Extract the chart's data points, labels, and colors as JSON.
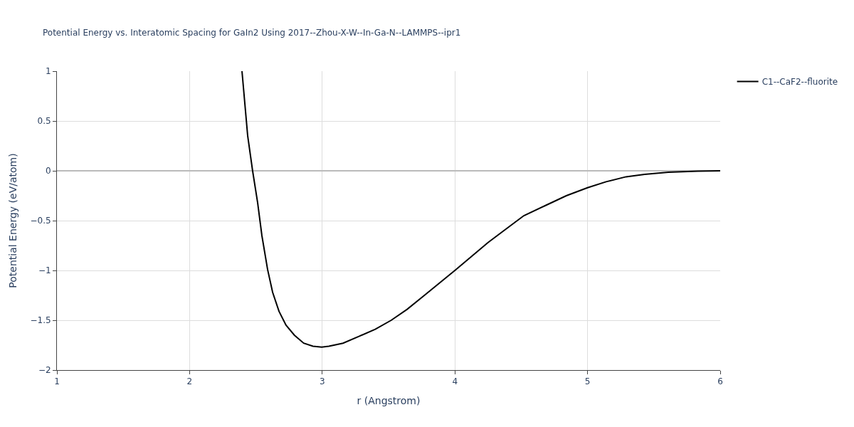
{
  "chart_data": {
    "type": "line",
    "title": "Potential Energy vs. Interatomic Spacing for GaIn2 Using 2017--Zhou-X-W--In-Ga-N--LAMMPS--ipr1",
    "xlabel": "r (Angstrom)",
    "ylabel": "Potential Energy (eV/atom)",
    "series": [
      {
        "name": "C1--CaF2--fluorite",
        "color": "#000000",
        "x": [
          2.395,
          2.438,
          2.475,
          2.513,
          2.545,
          2.588,
          2.626,
          2.674,
          2.727,
          2.79,
          2.86,
          2.93,
          2.996,
          3.05,
          3.157,
          3.28,
          3.4,
          3.52,
          3.64,
          3.77,
          4.0,
          4.25,
          4.4,
          4.52,
          4.68,
          4.84,
          5.0,
          5.14,
          5.29,
          5.43,
          5.61,
          5.83,
          6.0
        ],
        "values": [
          1,
          0.35,
          0,
          -0.32,
          -0.65,
          -0.99,
          -1.22,
          -1.41,
          -1.55,
          -1.65,
          -1.73,
          -1.76,
          -1.77,
          -1.76,
          -1.73,
          -1.66,
          -1.59,
          -1.5,
          -1.39,
          -1.25,
          -1.0,
          -0.72,
          -0.57,
          -0.45,
          -0.35,
          -0.25,
          -0.17,
          -0.11,
          -0.06,
          -0.035,
          -0.015,
          -0.003,
          0
        ]
      }
    ],
    "xlim": [
      1,
      6
    ],
    "xticks": [
      1,
      2,
      3,
      4,
      5,
      6
    ],
    "ylim": [
      -2,
      1
    ],
    "yticks": [
      1,
      0.5,
      0,
      {
        "value": -0.5,
        "label": "−0.5"
      },
      {
        "value": -1,
        "label": "−1"
      },
      {
        "value": -1.5,
        "label": "−1.5"
      },
      {
        "value": -2,
        "label": "−2"
      }
    ],
    "grid": true,
    "legend": "top right",
    "marker": "none",
    "line_style": "solid"
  }
}
